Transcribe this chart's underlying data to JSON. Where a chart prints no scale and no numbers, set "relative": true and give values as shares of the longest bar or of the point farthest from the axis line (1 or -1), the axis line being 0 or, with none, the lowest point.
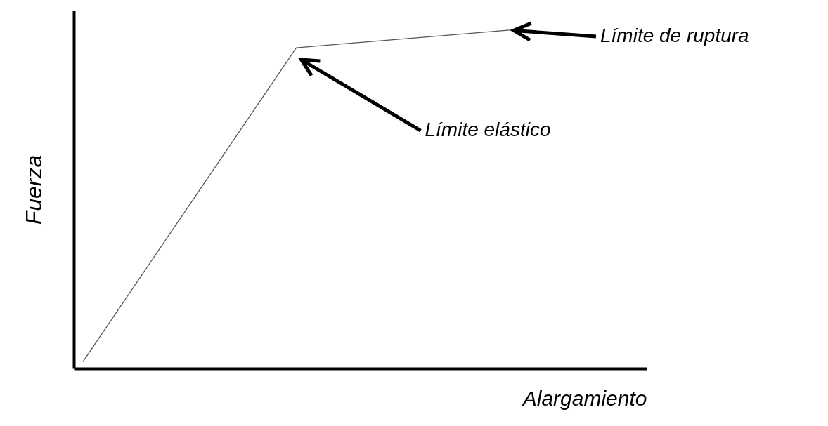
{
  "chart_data": {
    "type": "line",
    "relative": true,
    "xlabel": "Alargamiento",
    "ylabel": "Fuerza",
    "categories": [
      null,
      null,
      null
    ],
    "series": [
      {
        "color": "#555555",
        "values": [
          0.02,
          0.948,
          1
        ]
      }
    ],
    "annotations": [
      "Límite de ruptura",
      "Límite elástico"
    ],
    "tick_labels": false,
    "grid": false,
    "marker": "none",
    "line_style": "solid"
  }
}
